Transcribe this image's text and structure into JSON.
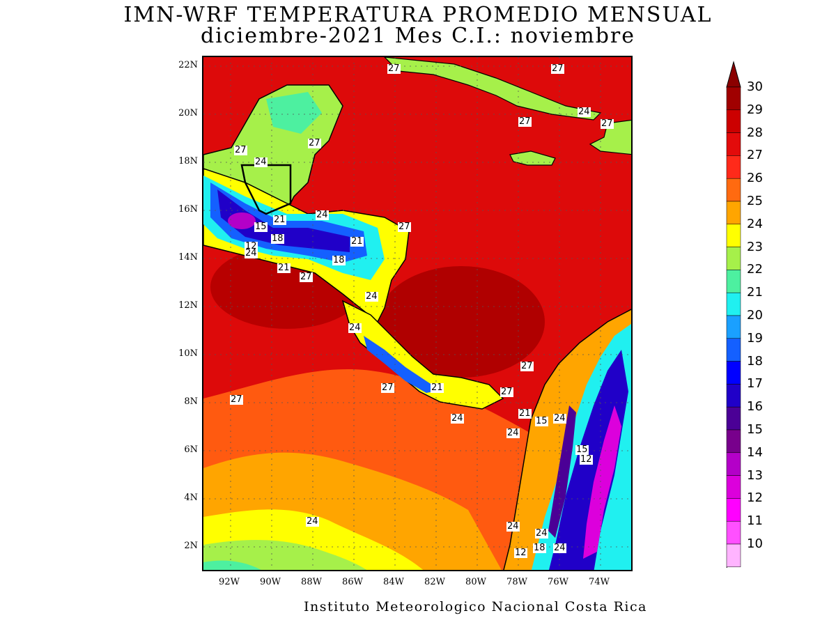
{
  "title": {
    "line1": "IMN-WRF  TEMPERATURA PROMEDIO MENSUAL",
    "line2": "diciembre-2021 Mes C.I.: noviembre"
  },
  "credit": "Instituto Meteorologico Nacional Costa Rica",
  "axes": {
    "lat_labels": [
      "22N",
      "20N",
      "18N",
      "16N",
      "14N",
      "12N",
      "10N",
      "8N",
      "6N",
      "4N",
      "2N"
    ],
    "lon_labels": [
      "92W",
      "90W",
      "88W",
      "86W",
      "84W",
      "82W",
      "80W",
      "78W",
      "76W",
      "74W"
    ]
  },
  "colorbar": {
    "levels": [
      "30",
      "29",
      "28",
      "27",
      "26",
      "25",
      "24",
      "23",
      "22",
      "21",
      "20",
      "19",
      "18",
      "17",
      "16",
      "15",
      "14",
      "13",
      "12",
      "11",
      "10"
    ],
    "colors": [
      "#a00000",
      "#cc0000",
      "#e30b0b",
      "#ff2a1a",
      "#ff6a10",
      "#ffa500",
      "#ffff00",
      "#a6f04a",
      "#4df0a0",
      "#20f0f0",
      "#1aa0ff",
      "#1460ff",
      "#0000ff",
      "#2000c8",
      "#4b0096",
      "#78008c",
      "#b400c8",
      "#dc00dc",
      "#ff00ff",
      "#ff50ff",
      "#ffb4ff"
    ],
    "top_arrow_color": "#8b0000"
  },
  "contour_labels": [
    {
      "text": "27",
      "lon": -84.0,
      "lat": 21.9
    },
    {
      "text": "27",
      "lon": -76.0,
      "lat": 21.9
    },
    {
      "text": "24",
      "lon": -74.7,
      "lat": 20.1
    },
    {
      "text": "27",
      "lon": -77.6,
      "lat": 19.7
    },
    {
      "text": "27",
      "lon": -73.6,
      "lat": 19.6
    },
    {
      "text": "27",
      "lon": -91.5,
      "lat": 18.5
    },
    {
      "text": "27",
      "lon": -87.9,
      "lat": 18.8
    },
    {
      "text": "24",
      "lon": -90.5,
      "lat": 18.0
    },
    {
      "text": "21",
      "lon": -89.6,
      "lat": 15.6
    },
    {
      "text": "24",
      "lon": -87.5,
      "lat": 15.8
    },
    {
      "text": "15",
      "lon": -90.5,
      "lat": 15.3
    },
    {
      "text": "18",
      "lon": -89.7,
      "lat": 14.8
    },
    {
      "text": "12",
      "lon": -91.0,
      "lat": 14.5
    },
    {
      "text": "24",
      "lon": -91.0,
      "lat": 14.2
    },
    {
      "text": "21",
      "lon": -85.8,
      "lat": 14.7
    },
    {
      "text": "27",
      "lon": -83.5,
      "lat": 15.3
    },
    {
      "text": "18",
      "lon": -86.7,
      "lat": 13.9
    },
    {
      "text": "21",
      "lon": -89.4,
      "lat": 13.6
    },
    {
      "text": "27",
      "lon": -88.3,
      "lat": 13.2
    },
    {
      "text": "24",
      "lon": -85.1,
      "lat": 12.4
    },
    {
      "text": "24",
      "lon": -85.9,
      "lat": 11.1
    },
    {
      "text": "27",
      "lon": -77.5,
      "lat": 9.5
    },
    {
      "text": "27",
      "lon": -84.3,
      "lat": 8.6
    },
    {
      "text": "21",
      "lon": -81.9,
      "lat": 8.6
    },
    {
      "text": "27",
      "lon": -78.5,
      "lat": 8.4
    },
    {
      "text": "27",
      "lon": -91.7,
      "lat": 8.1
    },
    {
      "text": "21",
      "lon": -77.6,
      "lat": 7.5
    },
    {
      "text": "15",
      "lon": -76.8,
      "lat": 7.2
    },
    {
      "text": "24",
      "lon": -75.9,
      "lat": 7.3
    },
    {
      "text": "24",
      "lon": -80.9,
      "lat": 7.3
    },
    {
      "text": "24",
      "lon": -78.2,
      "lat": 6.7
    },
    {
      "text": "15",
      "lon": -74.8,
      "lat": 6.0
    },
    {
      "text": "12",
      "lon": -74.6,
      "lat": 5.6
    },
    {
      "text": "24",
      "lon": -88.0,
      "lat": 3.0
    },
    {
      "text": "24",
      "lon": -78.2,
      "lat": 2.8
    },
    {
      "text": "24",
      "lon": -76.8,
      "lat": 2.5
    },
    {
      "text": "18",
      "lon": -76.9,
      "lat": 1.9
    },
    {
      "text": "12",
      "lon": -77.8,
      "lat": 1.7
    },
    {
      "text": "24",
      "lon": -75.9,
      "lat": 1.9
    }
  ]
}
